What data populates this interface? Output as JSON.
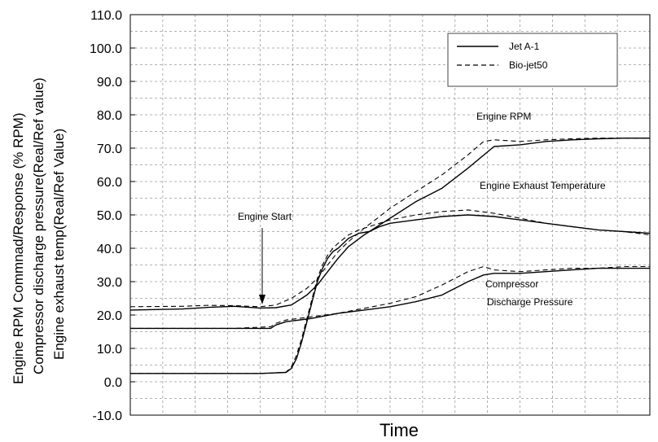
{
  "chart_data": {
    "type": "line",
    "title": "",
    "xlabel": "Time",
    "ylabel_lines": [
      "Engine RPM Commnad/Response (% RPM)",
      "Compressor discharge pressure(Real/Ref value)",
      "Engine exhaust temp(Real/Ref Value)"
    ],
    "ylim": [
      -10,
      110
    ],
    "yticks": [
      "-10.0",
      "0.0",
      "10.0",
      "20.0",
      "30.0",
      "40.0",
      "50.0",
      "60.0",
      "70.0",
      "80.0",
      "90.0",
      "100.0",
      "110.0"
    ],
    "grid": true,
    "legend": {
      "position": "top-right",
      "entries": [
        {
          "name": "Jet A-1",
          "style": "solid"
        },
        {
          "name": "Bio-jet50",
          "style": "dashed"
        }
      ]
    },
    "annotations": {
      "engine_start": "Engine Start",
      "engine_rpm": "Engine RPM",
      "exhaust_temp": "Engine Exhaust Temperature",
      "comp_line1": "Compressor",
      "comp_line2": "Discharge Pressure"
    },
    "x_range": [
      0,
      100
    ],
    "series": [
      {
        "name": "Jet A-1",
        "group": "Engine RPM",
        "style": "solid",
        "x": [
          0,
          10,
          20,
          25,
          27,
          30,
          31,
          32,
          33,
          34,
          35,
          36,
          37,
          38,
          39,
          40,
          42,
          44,
          46,
          48,
          50,
          55,
          60,
          65,
          70,
          75,
          80,
          85,
          90,
          95,
          100
        ],
        "y": [
          2.5,
          2.5,
          2.5,
          2.5,
          2.6,
          2.8,
          4,
          7,
          12,
          18,
          24,
          30,
          34,
          37,
          39,
          40,
          43,
          44.5,
          45,
          46.5,
          47.5,
          48.5,
          49.5,
          50,
          49.5,
          48.5,
          47.5,
          46.5,
          45.5,
          45,
          44.5
        ]
      },
      {
        "name": "Jet A-1",
        "group": "Engine Exhaust Temperature",
        "style": "solid",
        "x": [
          0,
          10,
          15,
          20,
          25,
          28,
          31,
          34,
          36,
          38,
          40,
          42,
          45,
          48,
          50,
          55,
          60,
          65,
          70,
          75,
          80,
          85,
          90,
          95,
          100
        ],
        "y": [
          21.5,
          21.8,
          22.3,
          22.6,
          22.1,
          22.2,
          23,
          26,
          29,
          33,
          37,
          40.5,
          44,
          47,
          49,
          54,
          58,
          64,
          70.5,
          71,
          72,
          72.5,
          72.8,
          73,
          73
        ]
      },
      {
        "name": "Jet A-1",
        "group": "Compressor Discharge Pressure",
        "style": "solid",
        "x": [
          0,
          10,
          20,
          27,
          28,
          30,
          35,
          40,
          45,
          50,
          55,
          60,
          65,
          68,
          70,
          75,
          80,
          85,
          90,
          95,
          100
        ],
        "y": [
          16,
          16,
          16,
          16,
          17,
          18,
          19,
          20.5,
          21.5,
          22.5,
          24,
          26,
          30,
          32,
          32.5,
          32.5,
          33,
          33.5,
          34,
          34,
          34
        ]
      },
      {
        "name": "Bio-jet50",
        "group": "Engine RPM",
        "style": "dashed",
        "x": [
          0,
          10,
          20,
          25,
          27,
          30,
          31,
          32,
          33,
          34,
          35,
          36,
          37,
          38,
          39,
          40,
          42,
          44,
          46,
          48,
          50,
          55,
          60,
          65,
          70,
          75,
          80,
          85,
          90,
          95,
          100
        ],
        "y": [
          2.5,
          2.5,
          2.5,
          2.5,
          2.6,
          2.9,
          4.5,
          8,
          13,
          19,
          25,
          31,
          35,
          38,
          40,
          41.5,
          44,
          45.5,
          46.5,
          47.5,
          48.5,
          50,
          51,
          51.5,
          50.5,
          49,
          47.5,
          46.5,
          45.5,
          45,
          44
        ]
      },
      {
        "name": "Bio-jet50",
        "group": "Engine Exhaust Temperature",
        "style": "dashed",
        "x": [
          0,
          10,
          15,
          20,
          25,
          28,
          31,
          34,
          36,
          38,
          40,
          42,
          45,
          48,
          50,
          55,
          60,
          65,
          68,
          70,
          75,
          80,
          85,
          90,
          95,
          100
        ],
        "y": [
          22.5,
          22.6,
          22.9,
          22.8,
          22.5,
          23,
          25,
          28,
          31,
          35,
          39,
          42,
          46,
          49.5,
          52,
          57,
          62,
          68,
          72,
          72.5,
          72,
          72.5,
          72.8,
          73,
          73,
          73
        ]
      },
      {
        "name": "Bio-jet50",
        "group": "Compressor Discharge Pressure",
        "style": "dashed",
        "x": [
          0,
          10,
          20,
          27,
          28,
          30,
          35,
          40,
          45,
          50,
          55,
          60,
          65,
          68,
          70,
          75,
          80,
          85,
          90,
          95,
          100
        ],
        "y": [
          16,
          16,
          16,
          16.5,
          17.5,
          18.5,
          19.5,
          20.5,
          22,
          23.5,
          25.5,
          29,
          33,
          34.5,
          33.5,
          33,
          33.5,
          34,
          34,
          34.5,
          34.5
        ]
      }
    ]
  }
}
